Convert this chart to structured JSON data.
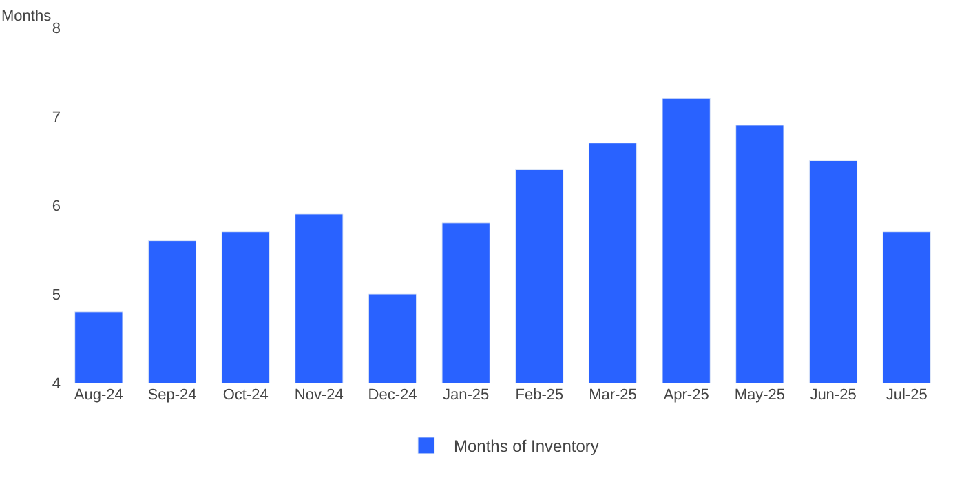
{
  "chart_data": {
    "type": "bar",
    "ylabel": "Months",
    "categories": [
      "Aug-24",
      "Sep-24",
      "Oct-24",
      "Nov-24",
      "Dec-24",
      "Jan-25",
      "Feb-25",
      "Mar-25",
      "Apr-25",
      "May-25",
      "Jun-25",
      "Jul-25"
    ],
    "series": [
      {
        "name": "Months of Inventory",
        "color": "#2962ff",
        "values": [
          4.8,
          5.6,
          5.7,
          5.9,
          5.0,
          5.8,
          6.4,
          6.7,
          7.2,
          6.9,
          6.5,
          5.7
        ]
      }
    ],
    "ylim": [
      4,
      8
    ],
    "yticks": [
      4,
      5,
      6,
      7,
      8
    ],
    "legend": "bottom"
  }
}
